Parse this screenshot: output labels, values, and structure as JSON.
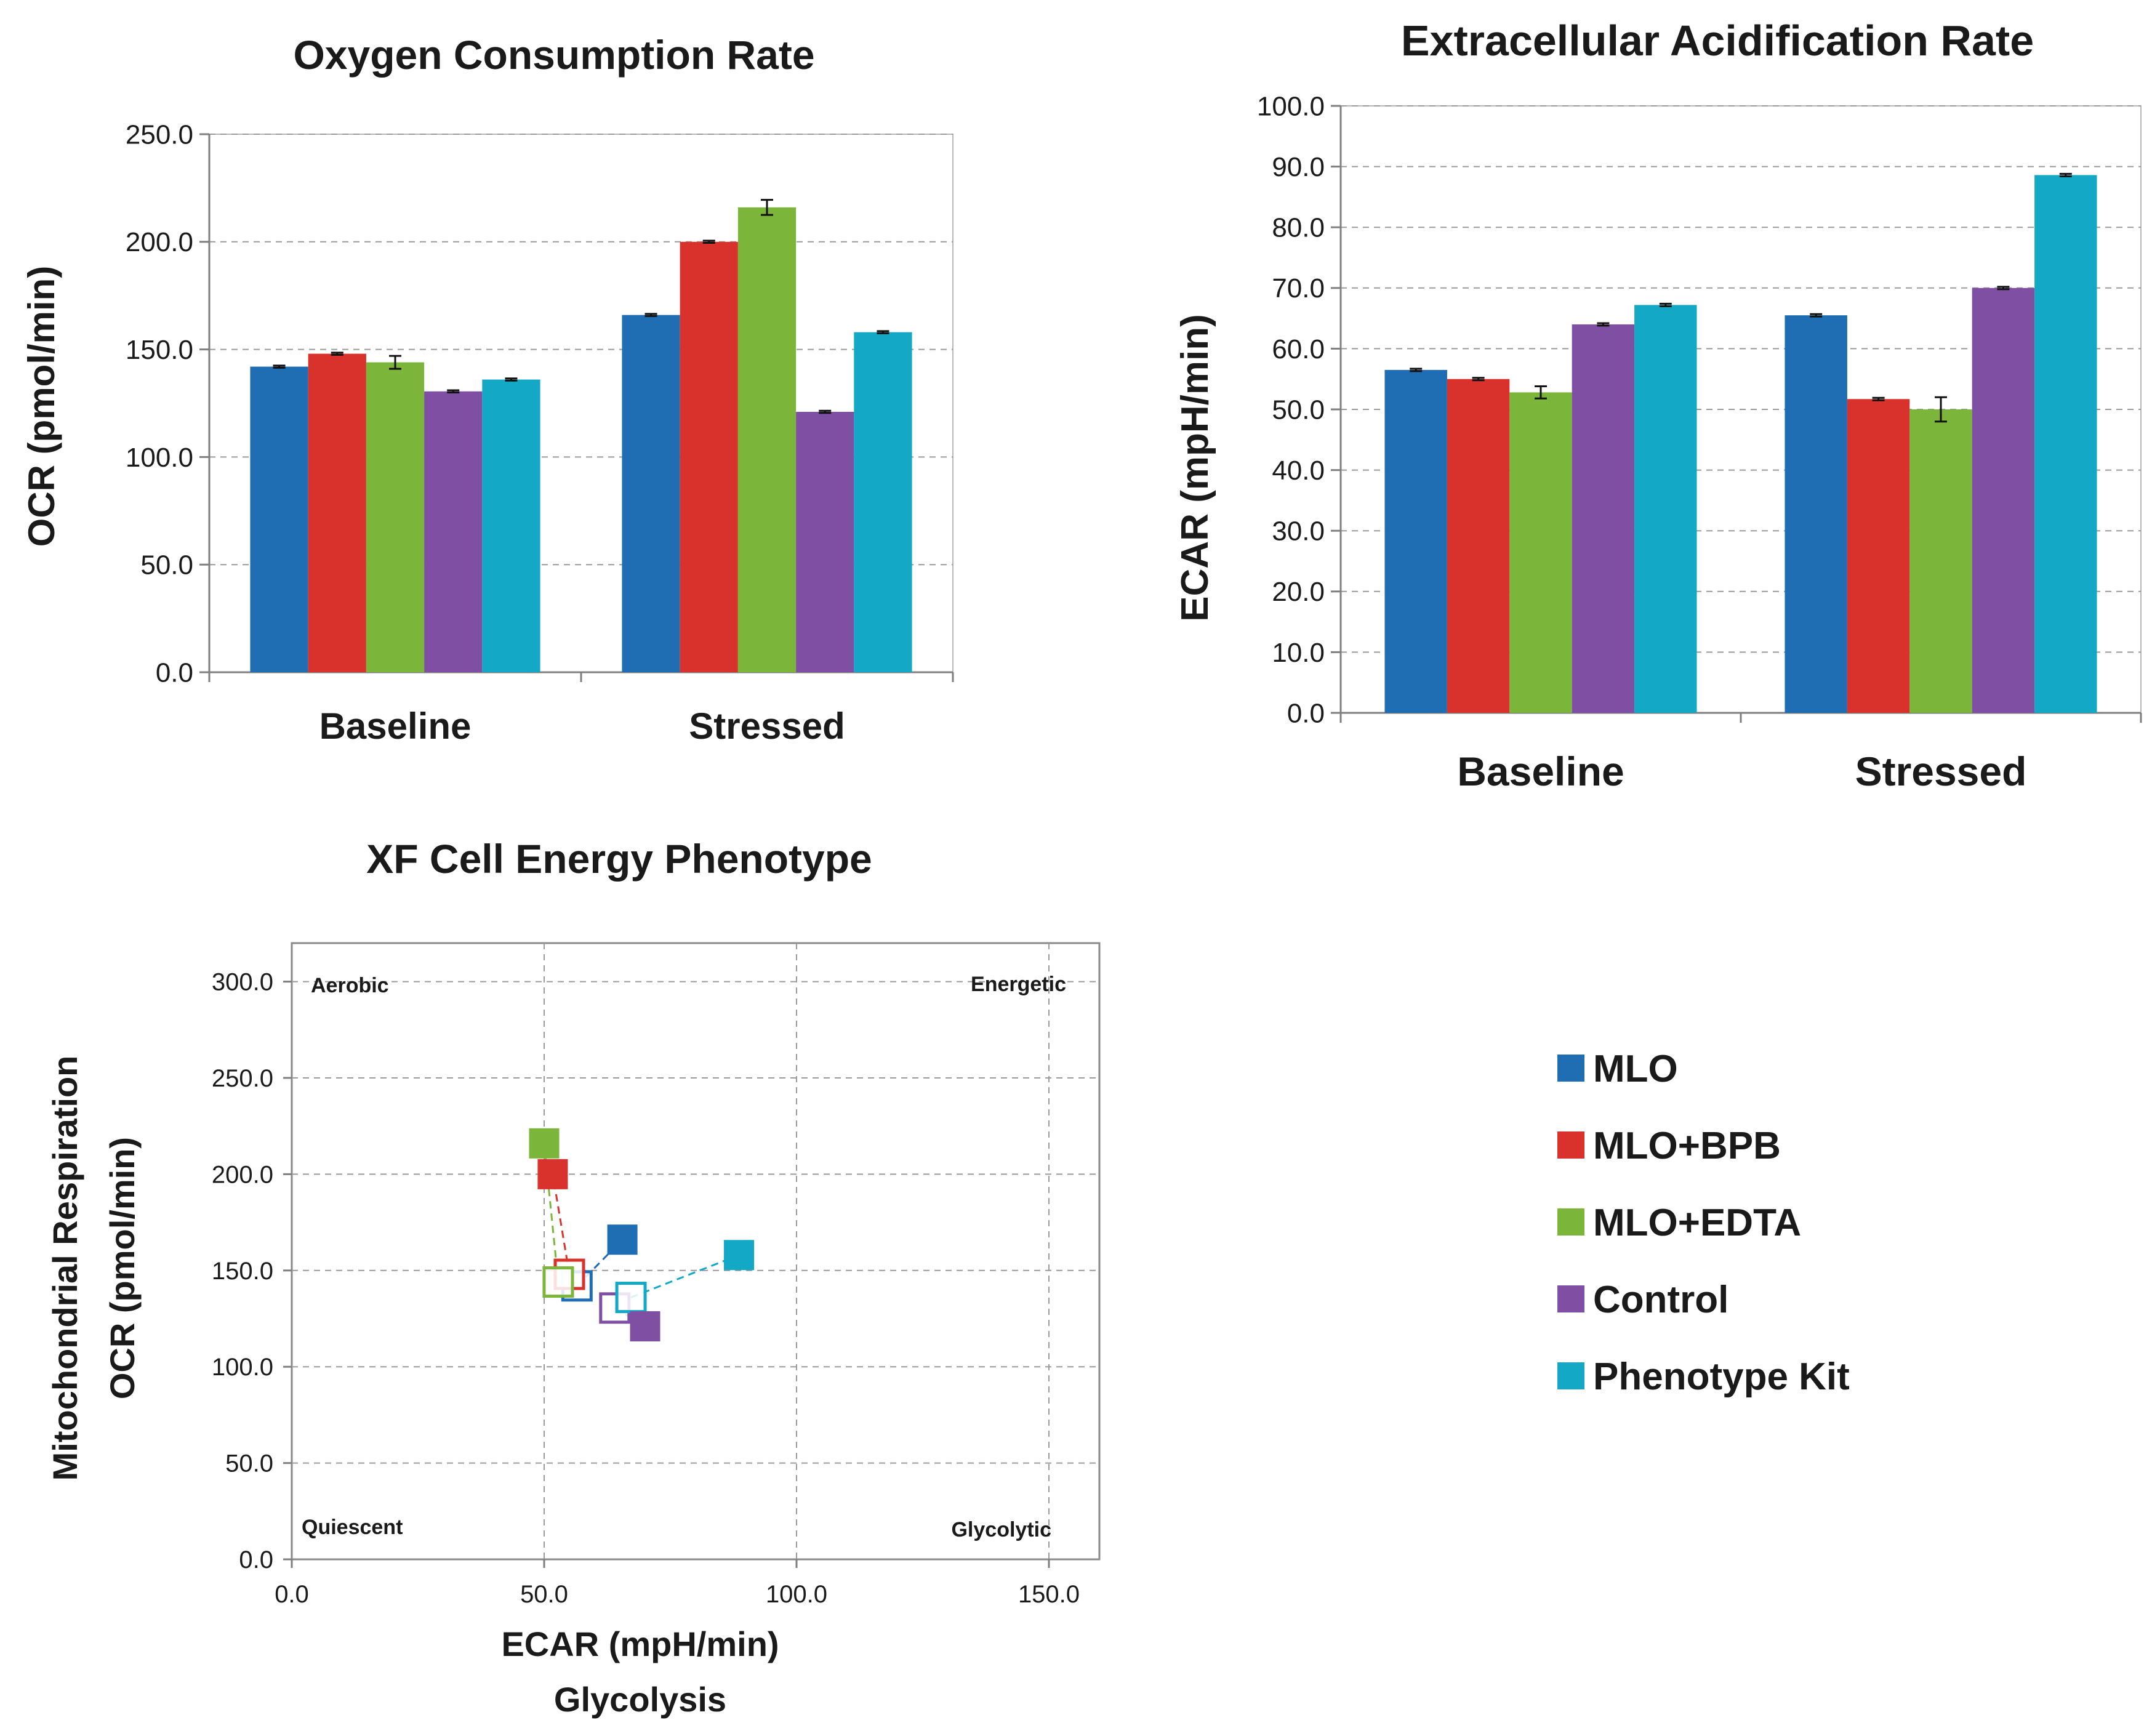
{
  "colors": {
    "MLO": "#1f6db3",
    "MLO+BPB": "#d9322c",
    "MLO+EDTA": "#7bb53a",
    "Control": "#7e4fa3",
    "Phenotype Kit": "#13a9c6",
    "grid": "#9a9a9a",
    "axis": "#7f7f7f",
    "text": "#1a1a1a"
  },
  "legend": {
    "items": [
      {
        "name": "MLO",
        "color": "#1f6db3"
      },
      {
        "name": "MLO+BPB",
        "color": "#d9322c"
      },
      {
        "name": "MLO+EDTA",
        "color": "#7bb53a"
      },
      {
        "name": "Control",
        "color": "#7e4fa3"
      },
      {
        "name": "Phenotype Kit",
        "color": "#13a9c6"
      }
    ]
  },
  "chart_data": [
    {
      "id": "ocr",
      "type": "bar",
      "title": "Oxygen Consumption Rate",
      "xlabel": "",
      "ylabel": "OCR (pmol/min)",
      "ylim": [
        0,
        250
      ],
      "yticks": [
        "0.0",
        "50.0",
        "100.0",
        "150.0",
        "200.0",
        "250.0"
      ],
      "grid": true,
      "categories": [
        "Baseline",
        "Stressed"
      ],
      "series": [
        {
          "name": "MLO",
          "values": [
            142,
            166
          ],
          "errors": [
            0.5,
            0.5
          ]
        },
        {
          "name": "MLO+BPB",
          "values": [
            148,
            200
          ],
          "errors": [
            0.5,
            0.5
          ]
        },
        {
          "name": "MLO+EDTA",
          "values": [
            144,
            216
          ],
          "errors": [
            3,
            3.5
          ]
        },
        {
          "name": "Control",
          "values": [
            130.5,
            121
          ],
          "errors": [
            0.5,
            0.5
          ]
        },
        {
          "name": "Phenotype Kit",
          "values": [
            136,
            158
          ],
          "errors": [
            0.5,
            0.5
          ]
        }
      ]
    },
    {
      "id": "ecar",
      "type": "bar",
      "title": "Extracellular Acidification Rate",
      "xlabel": "",
      "ylabel": "ECAR (mpH/min)",
      "ylim": [
        0,
        100
      ],
      "yticks": [
        "0.0",
        "10.0",
        "20.0",
        "30.0",
        "40.0",
        "50.0",
        "60.0",
        "70.0",
        "80.0",
        "90.0",
        "100.0"
      ],
      "grid": true,
      "categories": [
        "Baseline",
        "Stressed"
      ],
      "series": [
        {
          "name": "MLO",
          "values": [
            56.5,
            65.5
          ],
          "errors": [
            0.2,
            0.2
          ]
        },
        {
          "name": "MLO+BPB",
          "values": [
            55,
            51.7
          ],
          "errors": [
            0.2,
            0.2
          ]
        },
        {
          "name": "MLO+EDTA",
          "values": [
            52.8,
            50
          ],
          "errors": [
            1,
            2
          ]
        },
        {
          "name": "Control",
          "values": [
            64,
            70
          ],
          "errors": [
            0.2,
            0.2
          ]
        },
        {
          "name": "Phenotype Kit",
          "values": [
            67.2,
            88.6
          ],
          "errors": [
            0.2,
            0.2
          ]
        }
      ]
    },
    {
      "id": "phenotype",
      "type": "scatter",
      "title": "XF Cell Energy Phenotype",
      "xlabel": "ECAR (mpH/min)",
      "xlabel2": "Glycolysis",
      "ylabel": "OCR (pmol/min)",
      "ylabel2": "Mitochondrial  Respiration",
      "xlim": [
        0,
        160
      ],
      "ylim": [
        0,
        320
      ],
      "xticks": [
        "0.0",
        "50.0",
        "100.0",
        "150.0"
      ],
      "xtick_values": [
        0,
        50,
        100,
        150
      ],
      "yticks": [
        "0.0",
        "50.0",
        "100.0",
        "150.0",
        "200.0",
        "250.0",
        "300.0"
      ],
      "ytick_values": [
        0,
        50,
        100,
        150,
        200,
        250,
        300
      ],
      "grid": true,
      "quadrant_labels": {
        "top_left": "Aerobic",
        "top_right": "Energetic",
        "bottom_left": "Quiescent",
        "bottom_right": "Glycolytic"
      },
      "series": [
        {
          "name": "MLO",
          "baseline": [
            56.5,
            142
          ],
          "stressed": [
            65.5,
            166
          ]
        },
        {
          "name": "MLO+BPB",
          "baseline": [
            55,
            148
          ],
          "stressed": [
            51.7,
            200
          ]
        },
        {
          "name": "MLO+EDTA",
          "baseline": [
            52.8,
            144
          ],
          "stressed": [
            50,
            216
          ]
        },
        {
          "name": "Control",
          "baseline": [
            64,
            130.5
          ],
          "stressed": [
            70,
            121
          ]
        },
        {
          "name": "Phenotype Kit",
          "baseline": [
            67.2,
            136
          ],
          "stressed": [
            88.6,
            158
          ]
        }
      ]
    }
  ]
}
